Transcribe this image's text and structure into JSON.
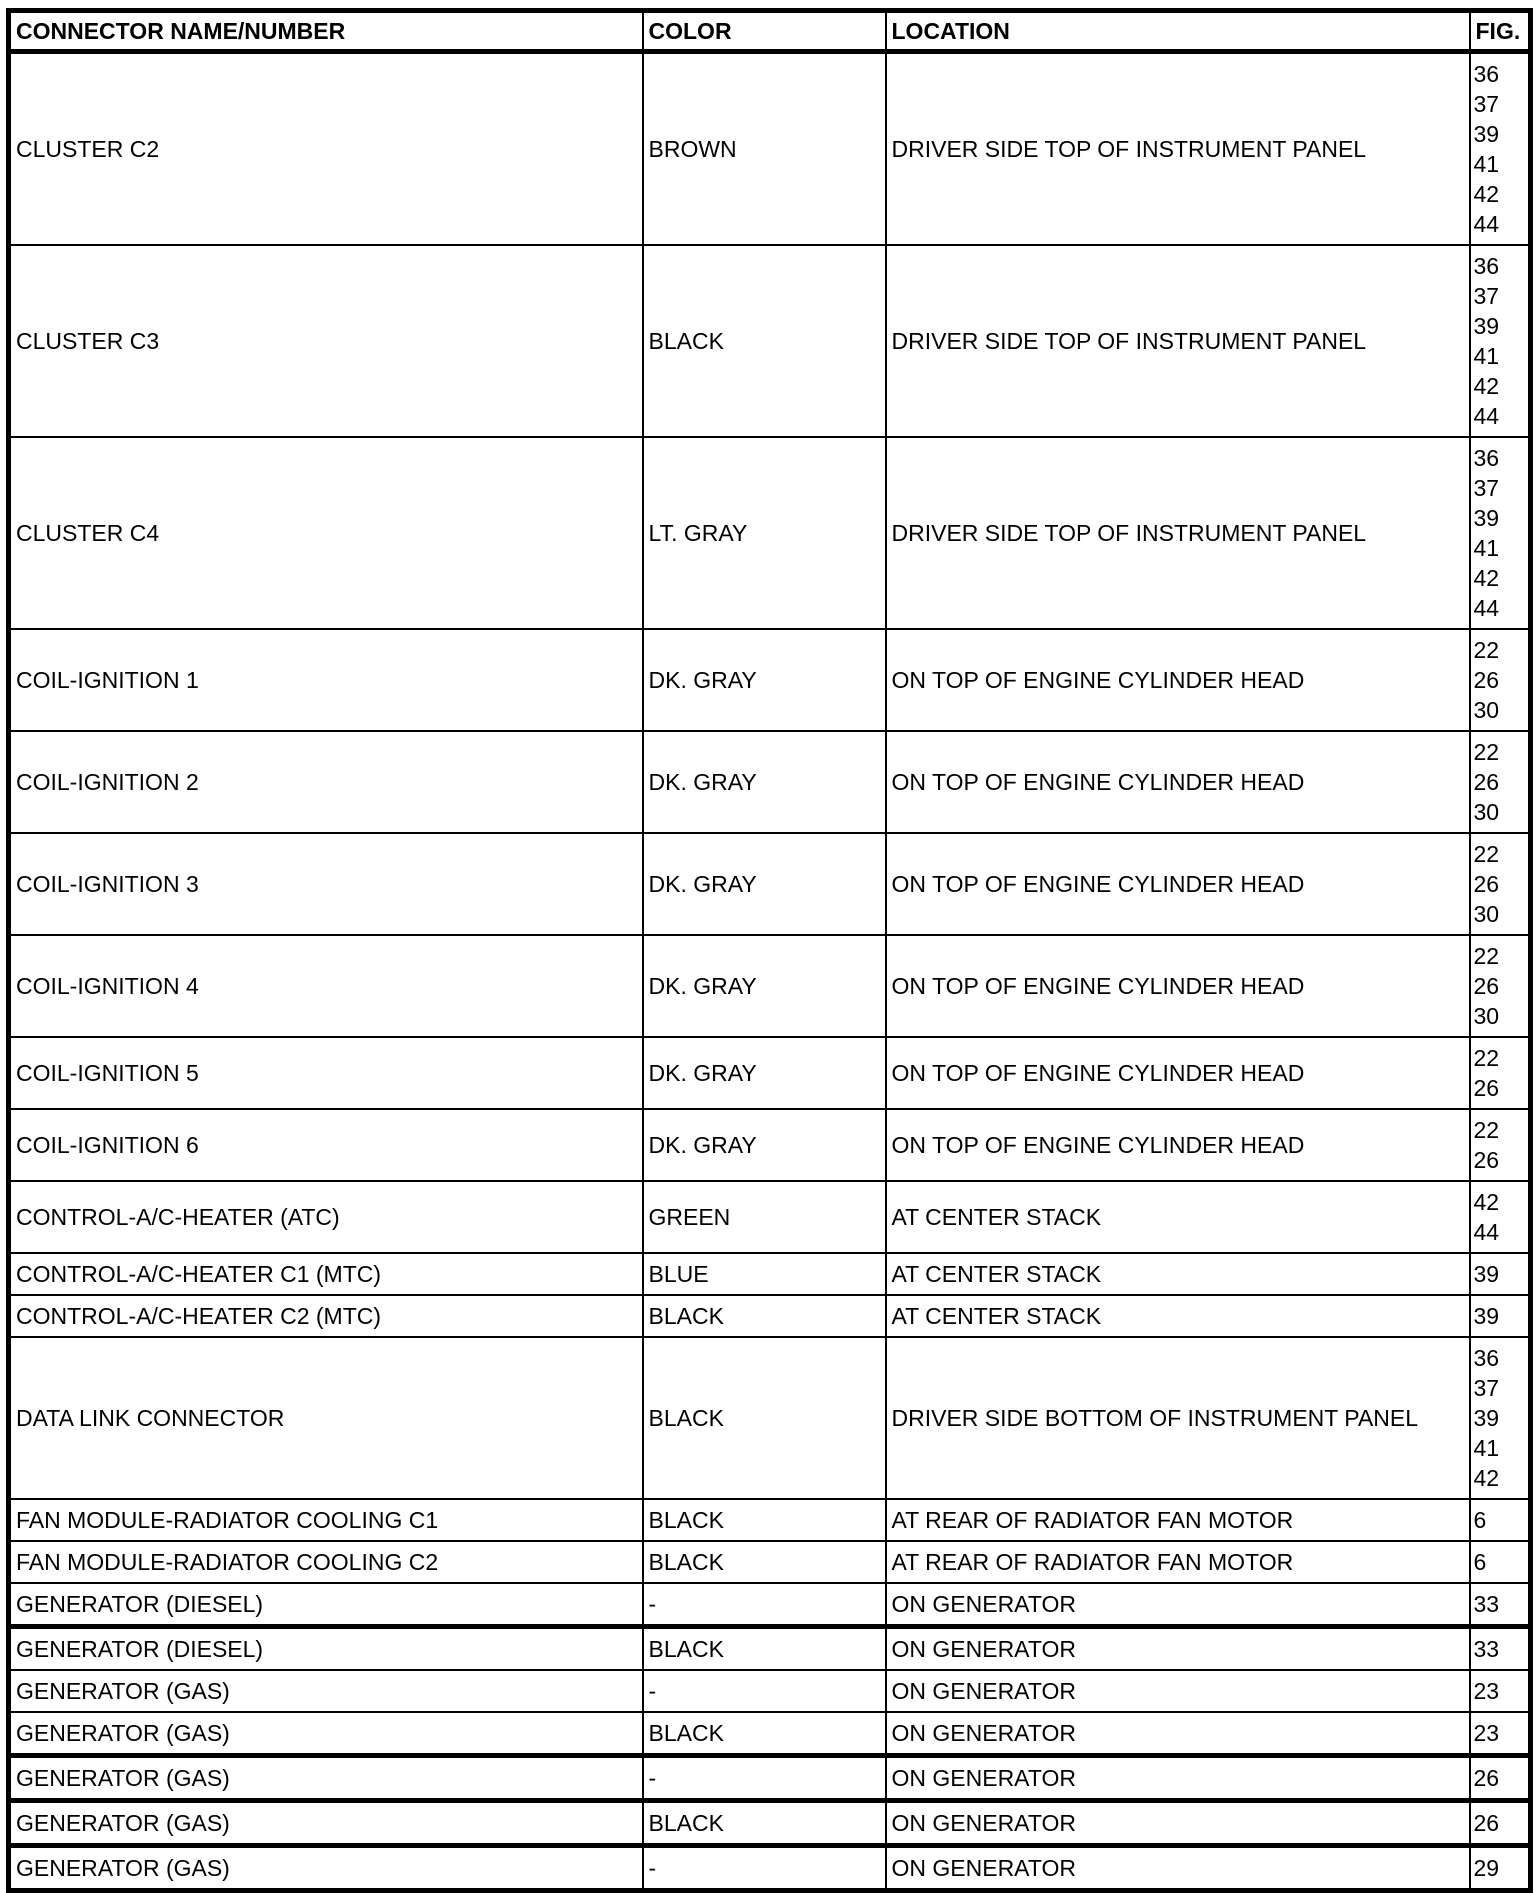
{
  "headers": [
    "CONNECTOR NAME/NUMBER",
    "COLOR",
    "LOCATION",
    "FIG."
  ],
  "rows": [
    {
      "name": "CLUSTER C2",
      "color": "BROWN",
      "location": "DRIVER SIDE TOP OF INSTRUMENT PANEL",
      "fig": [
        "36",
        "37",
        "39",
        "41",
        "42",
        "44"
      ]
    },
    {
      "name": "CLUSTER C3",
      "color": "BLACK",
      "location": "DRIVER SIDE TOP OF INSTRUMENT PANEL",
      "fig": [
        "36",
        "37",
        "39",
        "41",
        "42",
        "44"
      ]
    },
    {
      "name": "CLUSTER C4",
      "color": "LT. GRAY",
      "location": "DRIVER SIDE TOP OF INSTRUMENT PANEL",
      "fig": [
        "36",
        "37",
        "39",
        "41",
        "42",
        "44"
      ]
    },
    {
      "name": "COIL-IGNITION 1",
      "color": "DK. GRAY",
      "location": "ON TOP OF ENGINE CYLINDER HEAD",
      "fig": [
        "22",
        "26",
        "30"
      ]
    },
    {
      "name": "COIL-IGNITION 2",
      "color": "DK. GRAY",
      "location": "ON TOP OF ENGINE CYLINDER HEAD",
      "fig": [
        "22",
        "26",
        "30"
      ]
    },
    {
      "name": "COIL-IGNITION 3",
      "color": "DK. GRAY",
      "location": "ON TOP OF ENGINE CYLINDER HEAD",
      "fig": [
        "22",
        "26",
        "30"
      ]
    },
    {
      "name": "COIL-IGNITION 4",
      "color": "DK. GRAY",
      "location": "ON TOP OF ENGINE CYLINDER HEAD",
      "fig": [
        "22",
        "26",
        "30"
      ]
    },
    {
      "name": "COIL-IGNITION 5",
      "color": "DK. GRAY",
      "location": "ON TOP OF ENGINE CYLINDER HEAD",
      "fig": [
        "22",
        "26"
      ]
    },
    {
      "name": "COIL-IGNITION 6",
      "color": "DK. GRAY",
      "location": "ON TOP OF ENGINE CYLINDER HEAD",
      "fig": [
        "22",
        "26"
      ]
    },
    {
      "name": "CONTROL-A/C-HEATER (ATC)",
      "color": "GREEN",
      "location": "AT CENTER STACK",
      "fig": [
        "42",
        "44"
      ]
    },
    {
      "name": "CONTROL-A/C-HEATER C1 (MTC)",
      "color": "BLUE",
      "location": "AT CENTER STACK",
      "fig": [
        "39"
      ]
    },
    {
      "name": "CONTROL-A/C-HEATER C2 (MTC)",
      "color": "BLACK",
      "location": "AT CENTER STACK",
      "fig": [
        "39"
      ]
    },
    {
      "name": "DATA LINK CONNECTOR",
      "color": "BLACK",
      "location": "DRIVER SIDE BOTTOM OF INSTRUMENT PANEL",
      "fig": [
        "36",
        "37",
        "39",
        "41",
        "42"
      ]
    },
    {
      "name": "FAN MODULE-RADIATOR COOLING C1",
      "color": "BLACK",
      "location": "AT REAR OF RADIATOR FAN MOTOR",
      "fig": [
        "6"
      ]
    },
    {
      "name": "FAN MODULE-RADIATOR COOLING C2",
      "color": "BLACK",
      "location": "AT REAR OF RADIATOR FAN MOTOR",
      "fig": [
        "6"
      ]
    },
    {
      "name": "GENERATOR (DIESEL)",
      "color": "-",
      "location": "ON GENERATOR",
      "fig": [
        "33"
      ]
    },
    {
      "name": "GENERATOR (DIESEL)",
      "color": "BLACK",
      "location": "ON GENERATOR",
      "fig": [
        "33"
      ],
      "thick": true
    },
    {
      "name": "GENERATOR (GAS)",
      "color": "-",
      "location": "ON GENERATOR",
      "fig": [
        "23"
      ]
    },
    {
      "name": "GENERATOR (GAS)",
      "color": "BLACK",
      "location": "ON GENERATOR",
      "fig": [
        "23"
      ]
    },
    {
      "name": "GENERATOR (GAS)",
      "color": "-",
      "location": "ON GENERATOR",
      "fig": [
        "26"
      ],
      "thick": true
    },
    {
      "name": "GENERATOR (GAS)",
      "color": "BLACK",
      "location": "ON GENERATOR",
      "fig": [
        "26"
      ],
      "thick": true
    },
    {
      "name": "GENERATOR (GAS)",
      "color": "-",
      "location": "ON GENERATOR",
      "fig": [
        "29"
      ],
      "thick": true
    }
  ]
}
